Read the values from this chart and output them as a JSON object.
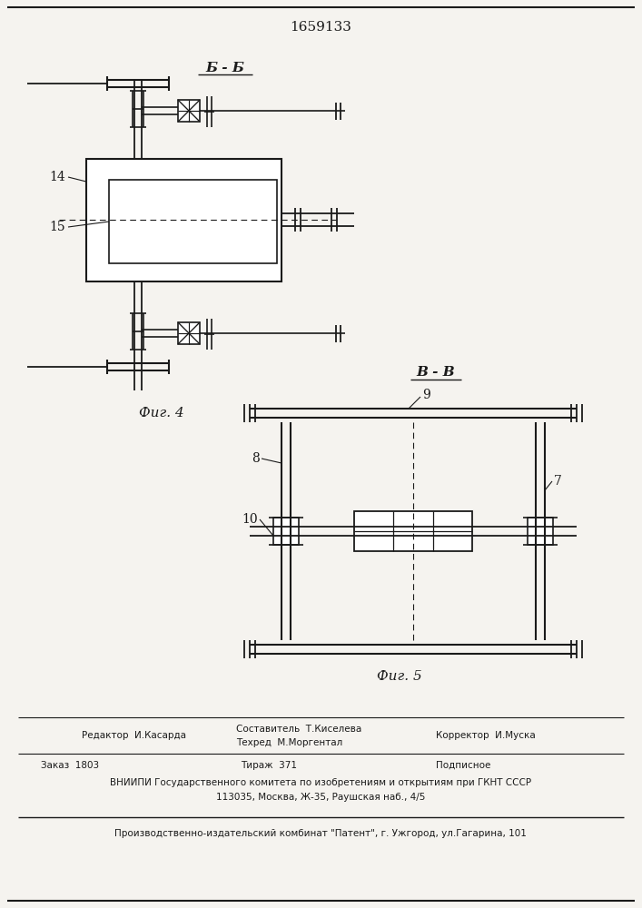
{
  "title_number": "1659133",
  "fig4_label": "Б - Б",
  "fig4_caption": "Фиг. 4",
  "fig5_label": "В - В",
  "fig5_caption": "Фиг. 5",
  "label_14": "14",
  "label_15": "15",
  "label_7": "7",
  "label_8": "8",
  "label_9": "9",
  "label_10": "10",
  "footer_line1_col1": "Редактор  И.Касарда",
  "footer_line1_col2": "Составитель  Т.Киселева",
  "footer_line2_col2": "Техред  М.Моргентал",
  "footer_line1_col3": "Корректор  И.Муска",
  "footer_zakaz": "Заказ  1803",
  "footer_tirazh": "Тираж  371",
  "footer_podpisnoe": "Подписное",
  "footer_vnipi": "ВНИИПИ Государственного комитета по изобретениям и открытиям при ГКНТ СССР",
  "footer_address": "113035, Москва, Ж-35, Раушская наб., 4/5",
  "footer_bottom": "Производственно-издательский комбинат \"Патент\", г. Ужгород, ул.Гагарина, 101",
  "bg_color": "#f5f3ef",
  "line_color": "#1a1a1a",
  "text_color": "#1a1a1a"
}
